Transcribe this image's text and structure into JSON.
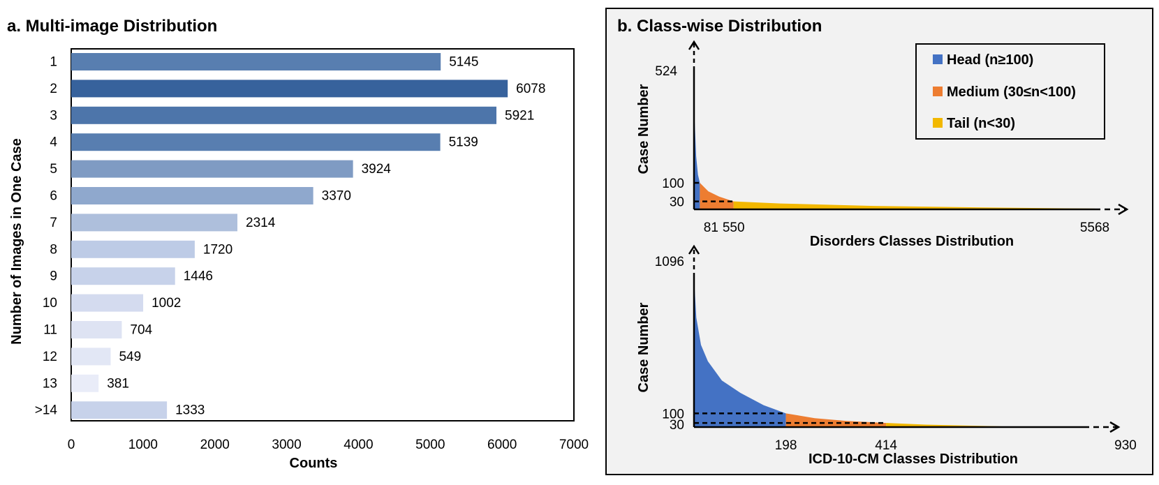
{
  "chart_data": [
    {
      "type": "bar",
      "orientation": "horizontal",
      "title": "a. Multi-image Distribution",
      "xlabel": "Counts",
      "ylabel": "Number of Images in One Case",
      "xlim": [
        0,
        7000
      ],
      "xticks": [
        "0",
        "1000",
        "2000",
        "3000",
        "4000",
        "5000",
        "6000",
        "7000"
      ],
      "categories": [
        "1",
        "2",
        "3",
        "4",
        "5",
        "6",
        "7",
        "8",
        "9",
        "10",
        "11",
        "12",
        "13",
        ">14"
      ],
      "values": [
        5145,
        6078,
        5921,
        5139,
        3924,
        3370,
        2314,
        1720,
        1446,
        1002,
        704,
        549,
        381,
        1333
      ],
      "bar_colors": [
        "#587eb0",
        "#37629c",
        "#4d75aa",
        "#587eb0",
        "#7f9bc3",
        "#8fa8cd",
        "#aebfdc",
        "#bdcbe6",
        "#c7d2ea",
        "#d4dbef",
        "#dee3f3",
        "#e2e7f5",
        "#e9ecf8",
        "#c7d2ea"
      ],
      "grid": false
    },
    {
      "type": "area",
      "title": "b. Class-wise Distribution",
      "legend": {
        "placement": "top-right",
        "entries": [
          {
            "label": "Head (n≥100)",
            "color": "#4472c4"
          },
          {
            "label": "Medium (30≤n<100)",
            "color": "#ed7d31"
          },
          {
            "label": "Tail (n<30)",
            "color": "#f2b800"
          }
        ]
      },
      "subplots": [
        {
          "xlabel": "Disorders Classes Distribution",
          "ylabel": "Case Number",
          "ymax_label": "524",
          "yticks": [
            "100",
            "30"
          ],
          "xticks": [
            "81",
            "550",
            "5568"
          ],
          "classes_total": 5568,
          "y_max": 524,
          "head_end": 81,
          "medium_end": 550,
          "curve": [
            [
              0,
              524
            ],
            [
              10,
              330
            ],
            [
              30,
              200
            ],
            [
              55,
              130
            ],
            [
              81,
              100
            ],
            [
              200,
              68
            ],
            [
              350,
              48
            ],
            [
              550,
              30
            ],
            [
              1200,
              22
            ],
            [
              2500,
              13
            ],
            [
              4000,
              7
            ],
            [
              5568,
              3
            ]
          ]
        },
        {
          "xlabel": "ICD-10-CM Classes Distribution",
          "ylabel": "Case Number",
          "ymax_label": "1096",
          "yticks": [
            "100",
            "30"
          ],
          "xticks": [
            "198",
            "414",
            "930"
          ],
          "classes_total": 930,
          "y_max": 1096,
          "head_end": 198,
          "medium_end": 414,
          "curve": [
            [
              0,
              1096
            ],
            [
              5,
              800
            ],
            [
              15,
              600
            ],
            [
              30,
              480
            ],
            [
              60,
              340
            ],
            [
              100,
              250
            ],
            [
              150,
              160
            ],
            [
              198,
              100
            ],
            [
              260,
              65
            ],
            [
              330,
              45
            ],
            [
              414,
              30
            ],
            [
              500,
              18
            ],
            [
              650,
              6
            ],
            [
              710,
              1
            ]
          ]
        }
      ]
    }
  ]
}
